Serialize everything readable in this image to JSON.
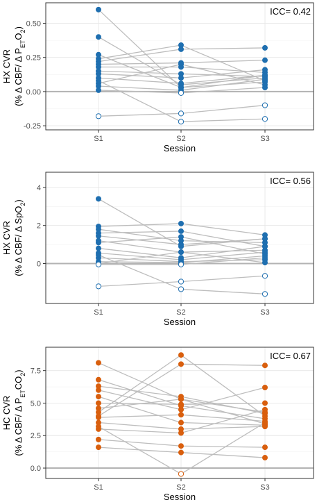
{
  "chart_data": [
    {
      "type": "scatter",
      "ylabel_line1": "HX CVR",
      "ylabel_line2_html": "(% Δ CBF/ Δ P<tspan baseline-shift='sub' font-size='9'>ET</tspan>O<tspan baseline-shift='sub' font-size='9'>2</tspan>)",
      "ylabel_plain": "HX CVR (% Δ CBF/ Δ PETO2)",
      "xlabel": "Session",
      "annotation": "ICC= 0.42",
      "categories": [
        "S1",
        "S2",
        "S3"
      ],
      "ylim": [
        -0.28,
        0.65
      ],
      "yticks": [
        -0.25,
        0.0,
        0.25,
        0.5
      ],
      "ytick_labels": [
        "-0.25",
        "0.00",
        "0.25",
        "0.50"
      ],
      "color": "#1f6fb0",
      "subjects": [
        [
          0.6,
          0.03,
          0.07
        ],
        [
          0.4,
          0.05,
          0.1
        ],
        [
          0.27,
          0.03,
          0.12
        ],
        [
          0.24,
          0.34,
          0.08
        ],
        [
          0.22,
          0.31,
          0.32
        ],
        [
          0.2,
          0.21,
          0.23
        ],
        [
          0.18,
          0.18,
          0.14
        ],
        [
          0.15,
          0.13,
          0.11
        ],
        [
          0.13,
          0.1,
          0.16
        ],
        [
          0.1,
          0.06,
          0.12
        ],
        [
          0.06,
          0.2,
          0.05
        ],
        [
          0.04,
          0.01,
          0.09
        ],
        [
          0.01,
          -0.01,
          0.03
        ],
        [
          -0.18,
          -0.16,
          -0.1
        ],
        [
          0.08,
          -0.22,
          -0.2
        ]
      ]
    },
    {
      "type": "scatter",
      "ylabel_line1": "HX CVR",
      "ylabel_line2_html": "(% Δ CBF/ Δ SpO<tspan baseline-shift='sub' font-size='9'>2</tspan>)",
      "ylabel_plain": "HX CVR (% Δ CBF/ Δ SpO2)",
      "xlabel": "Session",
      "annotation": "ICC= 0.56",
      "categories": [
        "S1",
        "S2",
        "S3"
      ],
      "ylim": [
        -2.1,
        4.8
      ],
      "yticks": [
        0,
        2,
        4
      ],
      "ytick_labels": [
        "0",
        "2",
        "4"
      ],
      "color": "#1f6fb0",
      "subjects": [
        [
          3.4,
          0.9,
          1.3
        ],
        [
          1.95,
          2.1,
          1.5
        ],
        [
          1.8,
          1.2,
          1.1
        ],
        [
          1.6,
          1.7,
          0.9
        ],
        [
          1.45,
          1.0,
          1.3
        ],
        [
          1.2,
          0.6,
          0.7
        ],
        [
          1.1,
          1.4,
          0.5
        ],
        [
          0.8,
          0.3,
          0.9
        ],
        [
          0.55,
          0.2,
          0.6
        ],
        [
          0.3,
          0.1,
          0.2
        ],
        [
          0.1,
          0.05,
          0.4
        ],
        [
          0.0,
          0.6,
          0.05
        ],
        [
          -0.05,
          -0.05,
          0.3
        ],
        [
          -1.2,
          -0.95,
          -0.65
        ],
        [
          0.45,
          -1.35,
          -1.6
        ]
      ]
    },
    {
      "type": "scatter",
      "ylabel_line1": "HC CVR",
      "ylabel_line2_html": "(% Δ CBF/ Δ P<tspan baseline-shift='sub' font-size='9'>ET</tspan>CO<tspan baseline-shift='sub' font-size='9'>2</tspan>)",
      "ylabel_plain": "HC CVR (% Δ CBF/ Δ PETCO2)",
      "xlabel": "Session",
      "annotation": "ICC= 0.67",
      "categories": [
        "S1",
        "S2",
        "S3"
      ],
      "ylim": [
        -0.8,
        9.3
      ],
      "yticks": [
        0.0,
        2.5,
        5.0,
        7.5
      ],
      "ytick_labels": [
        "0.0",
        "2.5",
        "5.0",
        "7.5"
      ],
      "color": "#d95f0e",
      "subjects": [
        [
          8.1,
          5.3,
          3.4
        ],
        [
          6.8,
          4.8,
          3.8
        ],
        [
          6.3,
          5.5,
          4.2
        ],
        [
          6.0,
          4.5,
          6.2
        ],
        [
          5.5,
          3.5,
          3.3
        ],
        [
          5.0,
          4.9,
          5.0
        ],
        [
          4.6,
          5.3,
          4.3
        ],
        [
          4.3,
          8.7,
          4.0
        ],
        [
          3.9,
          4.1,
          3.6
        ],
        [
          3.5,
          3.0,
          3.2
        ],
        [
          3.0,
          2.7,
          4.5
        ],
        [
          2.2,
          1.7,
          1.6
        ],
        [
          1.6,
          1.2,
          0.8
        ],
        [
          3.2,
          -0.45,
          3.5
        ],
        [
          4.0,
          8.0,
          7.9
        ]
      ]
    }
  ]
}
